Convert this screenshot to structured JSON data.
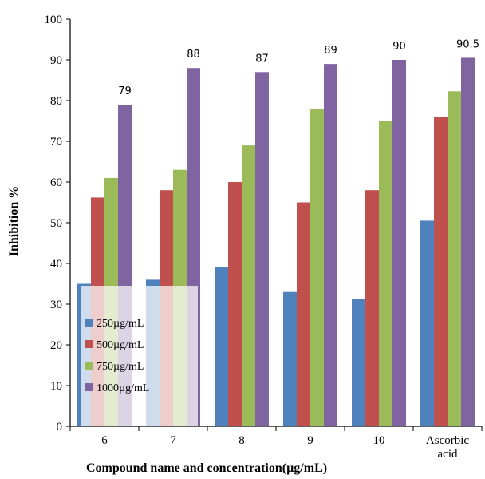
{
  "chart_data": {
    "type": "bar",
    "title": "",
    "xlabel": "Compound name and concentration(µg/mL)",
    "ylabel": "Inhibition %",
    "ylim": [
      0,
      100
    ],
    "ytick_step": 10,
    "grid": false,
    "legend_position": "bottom-left",
    "categories": [
      [
        "6"
      ],
      [
        "7"
      ],
      [
        "8"
      ],
      [
        "9"
      ],
      [
        "10"
      ],
      [
        "Ascorbic",
        "acid"
      ]
    ],
    "series": [
      {
        "name": "250µg/mL",
        "color": "#4F81BD",
        "values": [
          35,
          36,
          39.2,
          33,
          31.2,
          50.5
        ]
      },
      {
        "name": "500µg/mL",
        "color": "#C0504D",
        "values": [
          56.2,
          58,
          60,
          55,
          58,
          76
        ]
      },
      {
        "name": "750µg/mL",
        "color": "#9BBB59",
        "values": [
          61,
          63,
          69,
          78,
          75,
          82.3
        ]
      },
      {
        "name": "1000µg/mL",
        "color": "#8064A2",
        "values": [
          79,
          88,
          87,
          89,
          90,
          90.5
        ]
      }
    ],
    "data_labels": {
      "series_index": 3,
      "labels": [
        "79",
        "88",
        "87",
        "89",
        "90",
        "90.5"
      ]
    }
  }
}
